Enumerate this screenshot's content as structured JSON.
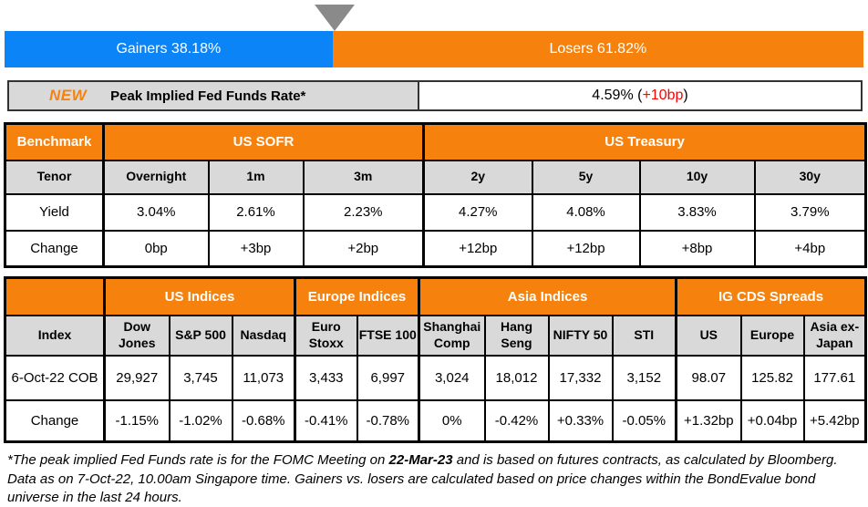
{
  "colors": {
    "accent_orange": "#f6820d",
    "bar_blue": "#0b84f8",
    "negative_red": "#ff0000",
    "positive_green": "#00b050",
    "cell_gray": "#d9d9d9",
    "marker_gray": "#8a8a8a"
  },
  "icons": {
    "marker": "down-triangle"
  },
  "gainers_losers": {
    "gainers_label": "Gainers 38.18%",
    "losers_label": "Losers 61.82%",
    "gainers_pct": 38.18,
    "losers_pct": 61.82
  },
  "peak_rate": {
    "badge": "NEW",
    "label": "Peak Implied Fed Funds Rate*",
    "value_prefix": "4.59% (",
    "value_change": "+10bp",
    "value_suffix": ")"
  },
  "benchmark_table": {
    "corner_label": "Benchmark",
    "groups": [
      "US SOFR",
      "US Treasury"
    ],
    "row_labels": {
      "tenor": "Tenor",
      "yield": "Yield",
      "change": "Change"
    },
    "tenors": [
      "Overnight",
      "1m",
      "3m",
      "2y",
      "5y",
      "10y",
      "30y"
    ],
    "yields": [
      "3.04%",
      "2.61%",
      "2.23%",
      "4.27%",
      "4.08%",
      "3.83%",
      "3.79%"
    ],
    "changes": [
      "0bp",
      "+3bp",
      "+2bp",
      "+12bp",
      "+12bp",
      "+8bp",
      "+4bp"
    ]
  },
  "indices_table": {
    "groups": [
      "US Indices",
      "Europe Indices",
      "Asia Indices",
      "IG CDS Spreads"
    ],
    "index_label": "Index",
    "columns": [
      "Dow Jones",
      "S&P 500",
      "Nasdaq",
      "Euro Stoxx",
      "FTSE 100",
      "Shanghai Comp",
      "Hang Seng",
      "NIFTY 50",
      "STI",
      "US",
      "Europe",
      "Asia ex-Japan"
    ],
    "date_label": "6-Oct-22 COB",
    "values": [
      "29,927",
      "3,745",
      "11,073",
      "3,433",
      "6,997",
      "3,024",
      "18,012",
      "17,332",
      "3,152",
      "98.07",
      "125.82",
      "177.61"
    ],
    "change_label": "Change",
    "changes": [
      "-1.15%",
      "-1.02%",
      "-0.68%",
      "-0.41%",
      "-0.78%",
      "0%",
      "-0.42%",
      "+0.33%",
      "-0.05%",
      "+1.32bp",
      "+0.04bp",
      "+5.42bp"
    ]
  },
  "footnote": {
    "part1": "*The peak implied Fed Funds rate is for the FOMC Meeting on ",
    "bold_date": "22-Mar-23",
    "part2": " and is based on futures contracts, as calculated by Bloomberg. Data as on 7-Oct-22, 10.00am Singapore time. Gainers vs. losers are calculated based on price changes within the BondEvalue bond universe in the last 24 hours."
  },
  "chart_data": [
    {
      "type": "bar",
      "title": "Gainers vs Losers (last 24 hours, BondEvalue bond universe)",
      "categories": [
        "Bond universe"
      ],
      "series": [
        {
          "name": "Gainers",
          "values": [
            38.18
          ]
        },
        {
          "name": "Losers",
          "values": [
            61.82
          ]
        }
      ],
      "unit": "%",
      "layout": "horizontal-stacked-100",
      "legend_position": "on-bar"
    },
    {
      "type": "table",
      "title": "Benchmark Yields",
      "columns": [
        "Overnight",
        "1m",
        "3m",
        "2y",
        "5y",
        "10y",
        "30y"
      ],
      "groups": {
        "US SOFR": [
          "Overnight",
          "1m",
          "3m"
        ],
        "US Treasury": [
          "2y",
          "5y",
          "10y",
          "30y"
        ]
      },
      "yield_pct": [
        3.04,
        2.61,
        2.23,
        4.27,
        4.08,
        3.83,
        3.79
      ],
      "change_bp": [
        0,
        3,
        2,
        12,
        12,
        8,
        4
      ]
    },
    {
      "type": "table",
      "title": "Indices & IG CDS Spreads (6-Oct-22 COB)",
      "columns": [
        "Dow Jones",
        "S&P 500",
        "Nasdaq",
        "Euro Stoxx",
        "FTSE 100",
        "Shanghai Comp",
        "Hang Seng",
        "NIFTY 50",
        "STI",
        "US CDS",
        "Europe CDS",
        "Asia ex-Japan CDS"
      ],
      "level": [
        29927,
        3745,
        11073,
        3433,
        6997,
        3024,
        18012,
        17332,
        3152,
        98.07,
        125.82,
        177.61
      ],
      "change": [
        "-1.15%",
        "-1.02%",
        "-0.68%",
        "-0.41%",
        "-0.78%",
        "0%",
        "-0.42%",
        "+0.33%",
        "-0.05%",
        "+1.32bp",
        "+0.04bp",
        "+5.42bp"
      ]
    }
  ],
  "peak_implied_fed_funds": {
    "value_pct": 4.59,
    "change_bp": 10
  }
}
